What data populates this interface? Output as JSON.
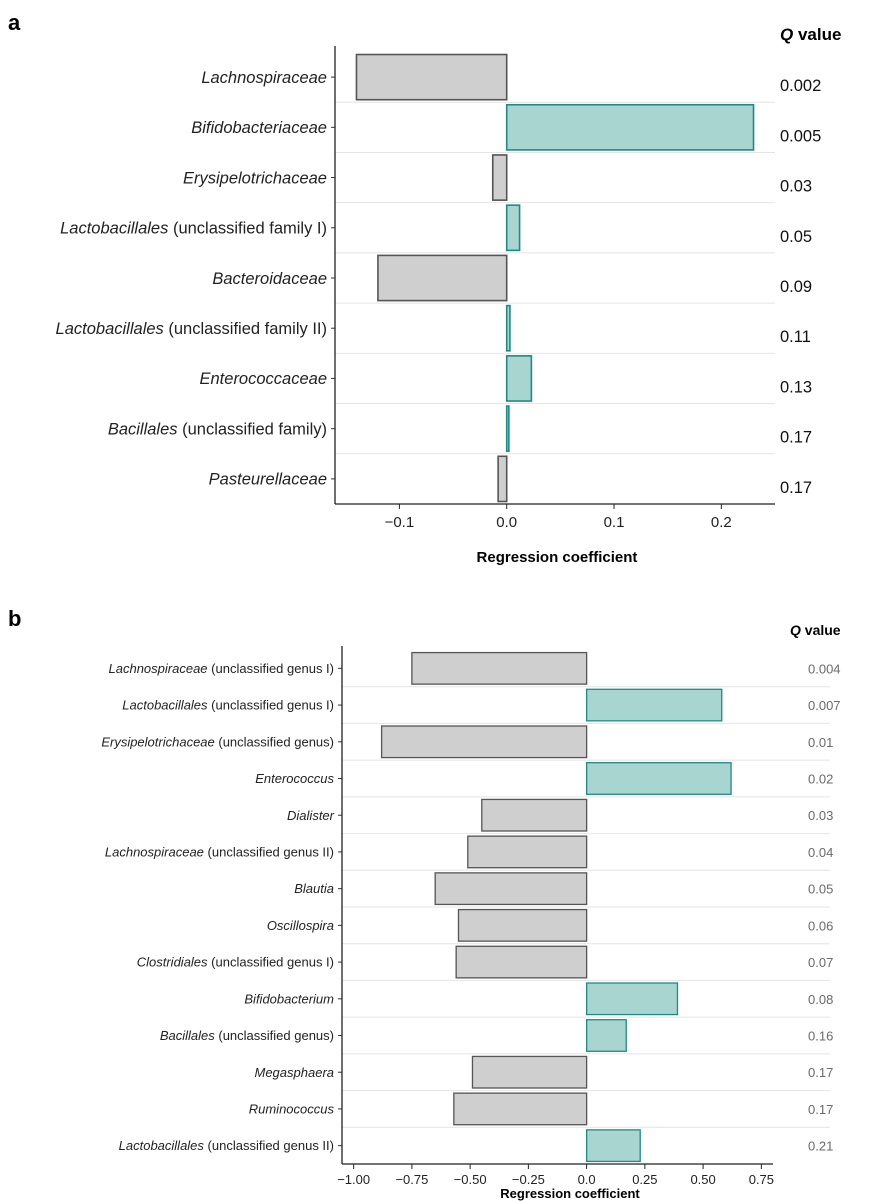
{
  "panels": [
    {
      "letter": "a",
      "q_header_symbol": "Q",
      "q_header_word": "value"
    },
    {
      "letter": "b",
      "q_header_symbol": "Q",
      "q_header_word": "value"
    }
  ],
  "colors": {
    "positive_fill": "#a9d5d1",
    "positive_stroke": "#1f8a82",
    "negative_fill": "#cfcfcf",
    "negative_stroke": "#555555"
  },
  "chart_data": [
    {
      "type": "bar",
      "orientation": "horizontal",
      "xlabel": "Regression coefficient",
      "xlim": [
        -0.16,
        0.25
      ],
      "xticks": [
        -0.1,
        0.0,
        0.1,
        0.2
      ],
      "xtick_labels": [
        "−0.1",
        "0.0",
        "0.1",
        "0.2"
      ],
      "categories": [
        {
          "italic": "Lachnospiraceae",
          "plain": ""
        },
        {
          "italic": "Bifidobacteriaceae",
          "plain": ""
        },
        {
          "italic": "Erysipelotrichaceae",
          "plain": ""
        },
        {
          "italic": "Lactobacillales",
          "plain": " (unclassified family I)"
        },
        {
          "italic": "Bacteroidaceae",
          "plain": ""
        },
        {
          "italic": "Lactobacillales",
          "plain": " (unclassified family II)"
        },
        {
          "italic": "Enterococcaceae",
          "plain": ""
        },
        {
          "italic": "Bacillales",
          "plain": " (unclassified family)"
        },
        {
          "italic": "Pasteurellaceae",
          "plain": ""
        }
      ],
      "values": [
        -0.14,
        0.23,
        -0.013,
        0.012,
        -0.12,
        0.003,
        0.023,
        0.002,
        -0.008
      ],
      "q_values": [
        "0.002",
        "0.005",
        "0.03",
        "0.05",
        "0.09",
        "0.11",
        "0.13",
        "0.17",
        "0.17"
      ]
    },
    {
      "type": "bar",
      "orientation": "horizontal",
      "xlabel": "Regression coefficient",
      "xlim": [
        -1.05,
        0.8
      ],
      "xticks": [
        -1.0,
        -0.75,
        -0.5,
        -0.25,
        0.0,
        0.25,
        0.5,
        0.75
      ],
      "xtick_labels": [
        "−1.00",
        "−0.75",
        "−0.50",
        "−0.25",
        "0.0",
        "0.25",
        "0.50",
        "0.75"
      ],
      "categories": [
        {
          "italic": "Lachnospiraceae",
          "plain": " (unclassified genus I)"
        },
        {
          "italic": "Lactobacillales",
          "plain": " (unclassified genus I)"
        },
        {
          "italic": "Erysipelotrichaceae",
          "plain": " (unclassified genus)"
        },
        {
          "italic": "Enterococcus",
          "plain": ""
        },
        {
          "italic": "Dialister",
          "plain": ""
        },
        {
          "italic": "Lachnospiraceae",
          "plain": " (unclassified genus II)"
        },
        {
          "italic": "Blautia",
          "plain": ""
        },
        {
          "italic": "Oscillospira",
          "plain": ""
        },
        {
          "italic": "Clostridiales",
          "plain": " (unclassified genus I)"
        },
        {
          "italic": "Bifidobacterium",
          "plain": ""
        },
        {
          "italic": "Bacillales",
          "plain": " (unclassified genus)"
        },
        {
          "italic": "Megasphaera",
          "plain": ""
        },
        {
          "italic": "Ruminococcus",
          "plain": ""
        },
        {
          "italic": "Lactobacillales",
          "plain": " (unclassified genus II)"
        }
      ],
      "values": [
        -0.75,
        0.58,
        -0.88,
        0.62,
        -0.45,
        -0.51,
        -0.65,
        -0.55,
        -0.56,
        0.39,
        0.17,
        -0.49,
        -0.57,
        0.23
      ],
      "q_values": [
        "0.004",
        "0.007",
        "0.01",
        "0.02",
        "0.03",
        "0.04",
        "0.05",
        "0.06",
        "0.07",
        "0.08",
        "0.16",
        "0.17",
        "0.17",
        "0.21"
      ]
    }
  ]
}
